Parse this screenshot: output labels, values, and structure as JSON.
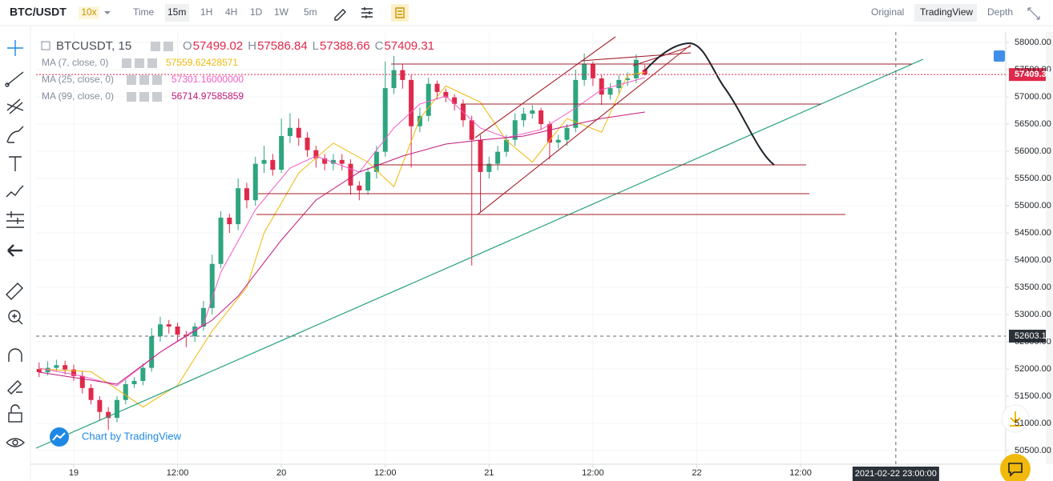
{
  "toolbar": {
    "symbol": "BTC/USDT",
    "leverage": "10x",
    "intervals": [
      "Time",
      "15m",
      "1H",
      "4H",
      "1D",
      "1W",
      "5m"
    ],
    "selected_interval": 1,
    "views": [
      "Original",
      "TradingView",
      "Depth"
    ],
    "selected_view": 1
  },
  "legend": {
    "symbol": "BTCUSDT, 15",
    "ohlc": [
      {
        "label": "O",
        "value": "57499.02"
      },
      {
        "label": "H",
        "value": "57586.84"
      },
      {
        "label": "L",
        "value": "57388.66"
      },
      {
        "label": "C",
        "value": "57409.31"
      }
    ],
    "ma_values": [
      "57559.62428571",
      "57301.16000000",
      "56714.97585859"
    ]
  },
  "watermark": "Chart by TradingView",
  "chart_data": {
    "type": "candlestick",
    "up_color": "#2ea57f",
    "down_color": "#e0294a",
    "x": [
      -4,
      -3,
      -2,
      -1,
      0,
      1,
      2,
      3,
      4,
      5,
      6,
      7,
      8,
      9,
      10,
      11,
      12,
      13,
      14,
      15,
      16,
      17,
      18,
      19,
      20,
      21,
      22,
      23,
      24,
      25,
      26,
      27,
      28,
      29,
      30,
      31,
      32,
      33,
      34,
      35,
      36,
      37,
      38,
      39,
      40,
      41,
      42,
      43,
      44,
      45,
      46,
      47,
      48,
      49,
      50,
      51,
      52,
      53,
      54,
      55,
      56,
      57,
      58,
      59,
      60,
      61,
      62,
      63,
      64,
      65,
      66
    ],
    "open": [
      52000,
      51940,
      52020,
      52070,
      51990,
      51870,
      51650,
      51430,
      51210,
      51100,
      51430,
      51720,
      51780,
      52020,
      52600,
      52820,
      52780,
      52630,
      52600,
      52780,
      53120,
      53930,
      54780,
      54660,
      55320,
      55100,
      55770,
      55840,
      55660,
      56280,
      56430,
      56250,
      56020,
      55870,
      55770,
      55840,
      55770,
      55370,
      55280,
      55620,
      55990,
      57160,
      57490,
      57310,
      56460,
      56650,
      57240,
      57090,
      56990,
      56870,
      56570,
      56210,
      55620,
      55770,
      55990,
      56210,
      56570,
      56690,
      56750,
      56500,
      56160,
      56210,
      56430,
      57310,
      57600,
      57340,
      57040,
      57160,
      57310,
      57340,
      57499.02
    ],
    "high": [
      52120,
      52140,
      52170,
      52150,
      52080,
      51960,
      51720,
      51500,
      51300,
      51500,
      51800,
      51850,
      52100,
      52750,
      52960,
      52900,
      52850,
      52700,
      52850,
      53250,
      54100,
      54900,
      54850,
      55500,
      55420,
      55900,
      56100,
      55950,
      56600,
      56700,
      56600,
      56350,
      56100,
      55950,
      55950,
      55950,
      55850,
      55450,
      55700,
      56100,
      57650,
      57750,
      57600,
      57400,
      56800,
      57350,
      57300,
      57150,
      57050,
      56950,
      56650,
      56300,
      55900,
      56100,
      56300,
      56700,
      56800,
      56850,
      56800,
      56550,
      56300,
      56500,
      57500,
      57800,
      57650,
      57400,
      57250,
      57400,
      57450,
      57780,
      57586.84
    ],
    "low": [
      51850,
      51880,
      51950,
      51900,
      51780,
      51550,
      51350,
      51050,
      50880,
      51020,
      51350,
      51650,
      51700,
      51950,
      52500,
      52650,
      52500,
      52400,
      52500,
      52700,
      53000,
      53850,
      54500,
      54550,
      54950,
      55000,
      55600,
      55550,
      55600,
      56150,
      56100,
      55900,
      55700,
      55650,
      55650,
      55650,
      55200,
      55100,
      55200,
      55500,
      55900,
      57050,
      57150,
      55700,
      56350,
      56550,
      56950,
      56900,
      56750,
      56450,
      53900,
      54880,
      55500,
      55650,
      55900,
      56100,
      56450,
      56600,
      56400,
      55850,
      56050,
      56100,
      56350,
      57200,
      57200,
      56850,
      56950,
      57050,
      57200,
      57250,
      57388.66
    ],
    "close": [
      51940,
      52020,
      52070,
      51990,
      51870,
      51650,
      51430,
      51210,
      51100,
      51430,
      51720,
      51780,
      52020,
      52600,
      52820,
      52780,
      52630,
      52600,
      52780,
      53120,
      53930,
      54780,
      54660,
      55320,
      55100,
      55770,
      55840,
      55660,
      56280,
      56430,
      56250,
      56020,
      55870,
      55770,
      55840,
      55770,
      55370,
      55280,
      55620,
      55990,
      57160,
      57490,
      57310,
      56460,
      56650,
      57240,
      57090,
      56990,
      56870,
      56570,
      56210,
      55620,
      55770,
      55990,
      56210,
      56570,
      56690,
      56750,
      56500,
      56160,
      56210,
      56430,
      57310,
      57600,
      57340,
      57040,
      57160,
      57310,
      57340,
      57680,
      57409.31
    ],
    "series": [
      {
        "name": "MA (7, close, 0)",
        "color": "#f0b90b",
        "x": [
          -4,
          2,
          8,
          12,
          16,
          20,
          22,
          26,
          30,
          34,
          37,
          40,
          43,
          47,
          50,
          53,
          57,
          61,
          64,
          66
        ],
        "values": [
          52000,
          51950,
          51300,
          51700,
          52700,
          53500,
          54500,
          55600,
          56150,
          55800,
          55350,
          56600,
          57200,
          56900,
          56200,
          55800,
          56600,
          56350,
          57400,
          57450
        ]
      },
      {
        "name": "MA (25, close, 0)",
        "color": "#f25cc8",
        "x": [
          -4,
          1,
          5,
          10,
          15,
          17,
          21,
          25,
          28,
          33,
          37,
          40,
          43,
          47,
          50,
          54,
          58,
          61,
          66
        ],
        "values": [
          52015,
          51868,
          51691,
          52309,
          52824,
          53779,
          54926,
          55691,
          55912,
          55618,
          56426,
          56868,
          57015,
          56426,
          56250,
          56397,
          56794,
          57132,
          57353
        ]
      },
      {
        "name": "MA (99, close, 0)",
        "color": "#c2187a",
        "x": [
          -4,
          5,
          10,
          16,
          19,
          24,
          28,
          33,
          38,
          43,
          47,
          52,
          56,
          61,
          66
        ],
        "values": [
          51941,
          51721,
          52309,
          52897,
          53338,
          54368,
          55103,
          55618,
          55912,
          56132,
          56206,
          56279,
          56426,
          56603,
          56721
        ]
      }
    ],
    "xlim": [
      -4.35,
      107.7
    ],
    "xticks": [
      {
        "value": 0,
        "label": "19"
      },
      {
        "value": 12,
        "label": "12:00"
      },
      {
        "value": 24,
        "label": "20"
      },
      {
        "value": 36,
        "label": "12:00"
      },
      {
        "value": 48,
        "label": "21"
      },
      {
        "value": 60,
        "label": "12:00"
      },
      {
        "value": 72,
        "label": "22"
      },
      {
        "value": 84,
        "label": "12:00"
      }
    ],
    "ylim": [
      50250,
      58191
    ],
    "yticks": [
      {
        "value": 50500,
        "label": "50500.00"
      },
      {
        "value": 51000,
        "label": "51000.00"
      },
      {
        "value": 51500,
        "label": "51500.00"
      },
      {
        "value": 52000,
        "label": "52000.00"
      },
      {
        "value": 52500,
        "label": "52500.00"
      },
      {
        "value": 53000,
        "label": "53000.00"
      },
      {
        "value": 53500,
        "label": "53500.00"
      },
      {
        "value": 54000,
        "label": "54000.00"
      },
      {
        "value": 54500,
        "label": "54500.00"
      },
      {
        "value": 55000,
        "label": "55000.00"
      },
      {
        "value": 55500,
        "label": "55500.00"
      },
      {
        "value": 56000,
        "label": "56000.00"
      },
      {
        "value": 56500,
        "label": "56500.00"
      },
      {
        "value": 57000,
        "label": "57000.00"
      },
      {
        "value": 57500,
        "label": "57500.00"
      },
      {
        "value": 58000,
        "label": "58000.00"
      }
    ],
    "grid": true,
    "last_price": 57409.31,
    "last_price_color": "#e0294a",
    "crosshair": {
      "x": {
        "value": 95,
        "label": "2021-02-22 23:00:00"
      },
      "y": 52603.12
    }
  }
}
